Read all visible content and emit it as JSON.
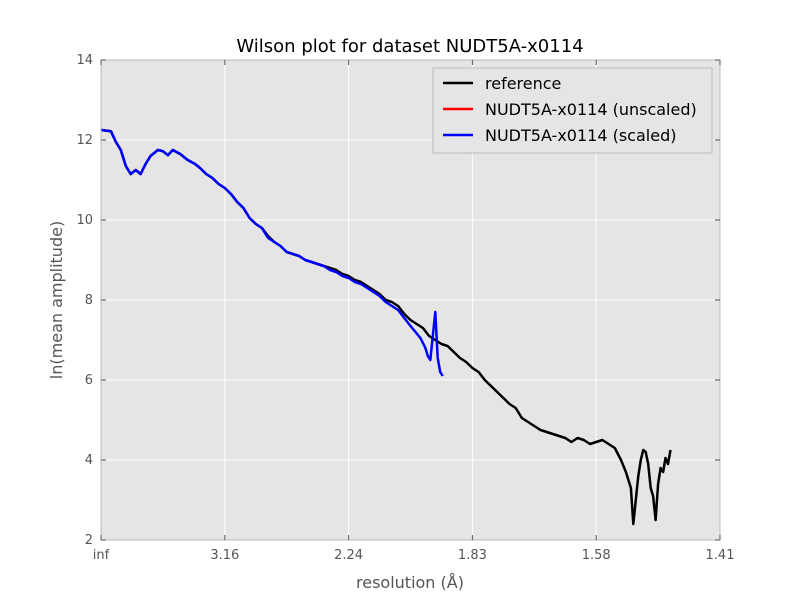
{
  "chart_data": {
    "type": "line",
    "title": "Wilson plot for dataset NUDT5A-x0114",
    "xlabel": "resolution (Å)",
    "ylabel": "ln(mean amplitude)",
    "x_scale": "1/d^2",
    "xlim": [
      0,
      0.5
    ],
    "ylim": [
      2,
      14
    ],
    "x_ticks": [
      {
        "value": 0.0,
        "label": "inf"
      },
      {
        "value": 0.1,
        "label": "3.16"
      },
      {
        "value": 0.2,
        "label": "2.24"
      },
      {
        "value": 0.3,
        "label": "1.83"
      },
      {
        "value": 0.4,
        "label": "1.58"
      },
      {
        "value": 0.5,
        "label": "1.41"
      }
    ],
    "y_ticks": [
      2,
      4,
      6,
      8,
      10,
      12,
      14
    ],
    "grid": true,
    "legend_position": "top-right",
    "series": [
      {
        "name": "reference",
        "color": "#000000",
        "x": [
          0.0,
          0.008,
          0.012,
          0.016,
          0.02,
          0.024,
          0.028,
          0.032,
          0.036,
          0.04,
          0.046,
          0.05,
          0.054,
          0.058,
          0.064,
          0.07,
          0.076,
          0.08,
          0.085,
          0.09,
          0.095,
          0.1,
          0.105,
          0.11,
          0.115,
          0.12,
          0.125,
          0.13,
          0.135,
          0.14,
          0.145,
          0.15,
          0.155,
          0.16,
          0.165,
          0.17,
          0.175,
          0.18,
          0.185,
          0.19,
          0.195,
          0.2,
          0.205,
          0.21,
          0.215,
          0.22,
          0.225,
          0.23,
          0.235,
          0.24,
          0.245,
          0.25,
          0.255,
          0.26,
          0.265,
          0.27,
          0.275,
          0.28,
          0.285,
          0.29,
          0.295,
          0.3,
          0.305,
          0.31,
          0.315,
          0.32,
          0.325,
          0.33,
          0.335,
          0.34,
          0.345,
          0.35,
          0.355,
          0.36,
          0.365,
          0.37,
          0.375,
          0.38,
          0.385,
          0.39,
          0.395,
          0.4,
          0.405,
          0.41,
          0.415,
          0.42,
          0.424,
          0.428,
          0.43,
          0.432,
          0.434,
          0.436,
          0.438,
          0.44,
          0.442,
          0.444,
          0.446,
          0.448,
          0.45,
          0.452,
          0.454,
          0.456,
          0.458,
          0.46
        ],
        "y": [
          12.25,
          12.22,
          11.95,
          11.75,
          11.35,
          11.15,
          11.25,
          11.15,
          11.4,
          11.6,
          11.75,
          11.72,
          11.62,
          11.75,
          11.65,
          11.5,
          11.4,
          11.3,
          11.15,
          11.05,
          10.9,
          10.8,
          10.65,
          10.45,
          10.3,
          10.05,
          9.9,
          9.8,
          9.6,
          9.45,
          9.35,
          9.2,
          9.15,
          9.1,
          9.0,
          8.95,
          8.9,
          8.85,
          8.8,
          8.75,
          8.65,
          8.6,
          8.5,
          8.45,
          8.35,
          8.25,
          8.15,
          8.0,
          7.95,
          7.85,
          7.65,
          7.5,
          7.4,
          7.3,
          7.1,
          7.0,
          6.9,
          6.85,
          6.7,
          6.55,
          6.45,
          6.3,
          6.2,
          6.0,
          5.85,
          5.7,
          5.55,
          5.4,
          5.3,
          5.05,
          4.95,
          4.85,
          4.75,
          4.7,
          4.65,
          4.6,
          4.55,
          4.45,
          4.55,
          4.5,
          4.4,
          4.45,
          4.5,
          4.4,
          4.3,
          4.0,
          3.7,
          3.3,
          2.4,
          3.0,
          3.6,
          4.0,
          4.25,
          4.2,
          3.9,
          3.3,
          3.1,
          2.5,
          3.4,
          3.8,
          3.7,
          4.05,
          3.9,
          4.25
        ]
      },
      {
        "name": "NUDT5A-x0114 (unscaled)",
        "color": "#ff0000",
        "x": [],
        "y": []
      },
      {
        "name": "NUDT5A-x0114 (scaled)",
        "color": "#0000ff",
        "x": [
          0.0,
          0.008,
          0.012,
          0.016,
          0.02,
          0.024,
          0.028,
          0.032,
          0.036,
          0.04,
          0.046,
          0.05,
          0.054,
          0.058,
          0.064,
          0.07,
          0.076,
          0.08,
          0.085,
          0.09,
          0.095,
          0.1,
          0.105,
          0.11,
          0.115,
          0.12,
          0.125,
          0.13,
          0.135,
          0.14,
          0.145,
          0.15,
          0.155,
          0.16,
          0.165,
          0.17,
          0.175,
          0.18,
          0.185,
          0.19,
          0.195,
          0.2,
          0.205,
          0.21,
          0.215,
          0.22,
          0.225,
          0.23,
          0.235,
          0.24,
          0.245,
          0.25,
          0.254,
          0.258,
          0.262,
          0.264,
          0.266,
          0.268,
          0.27,
          0.272,
          0.274,
          0.276
        ],
        "y": [
          12.25,
          12.22,
          11.95,
          11.75,
          11.35,
          11.15,
          11.25,
          11.15,
          11.4,
          11.6,
          11.75,
          11.72,
          11.62,
          11.75,
          11.65,
          11.5,
          11.4,
          11.3,
          11.15,
          11.05,
          10.9,
          10.8,
          10.65,
          10.45,
          10.3,
          10.05,
          9.9,
          9.8,
          9.55,
          9.45,
          9.35,
          9.2,
          9.15,
          9.1,
          9.0,
          8.95,
          8.9,
          8.85,
          8.75,
          8.7,
          8.6,
          8.55,
          8.45,
          8.4,
          8.3,
          8.2,
          8.1,
          7.95,
          7.85,
          7.75,
          7.55,
          7.35,
          7.2,
          7.05,
          6.8,
          6.6,
          6.5,
          7.1,
          7.7,
          6.55,
          6.2,
          6.1
        ]
      }
    ]
  }
}
